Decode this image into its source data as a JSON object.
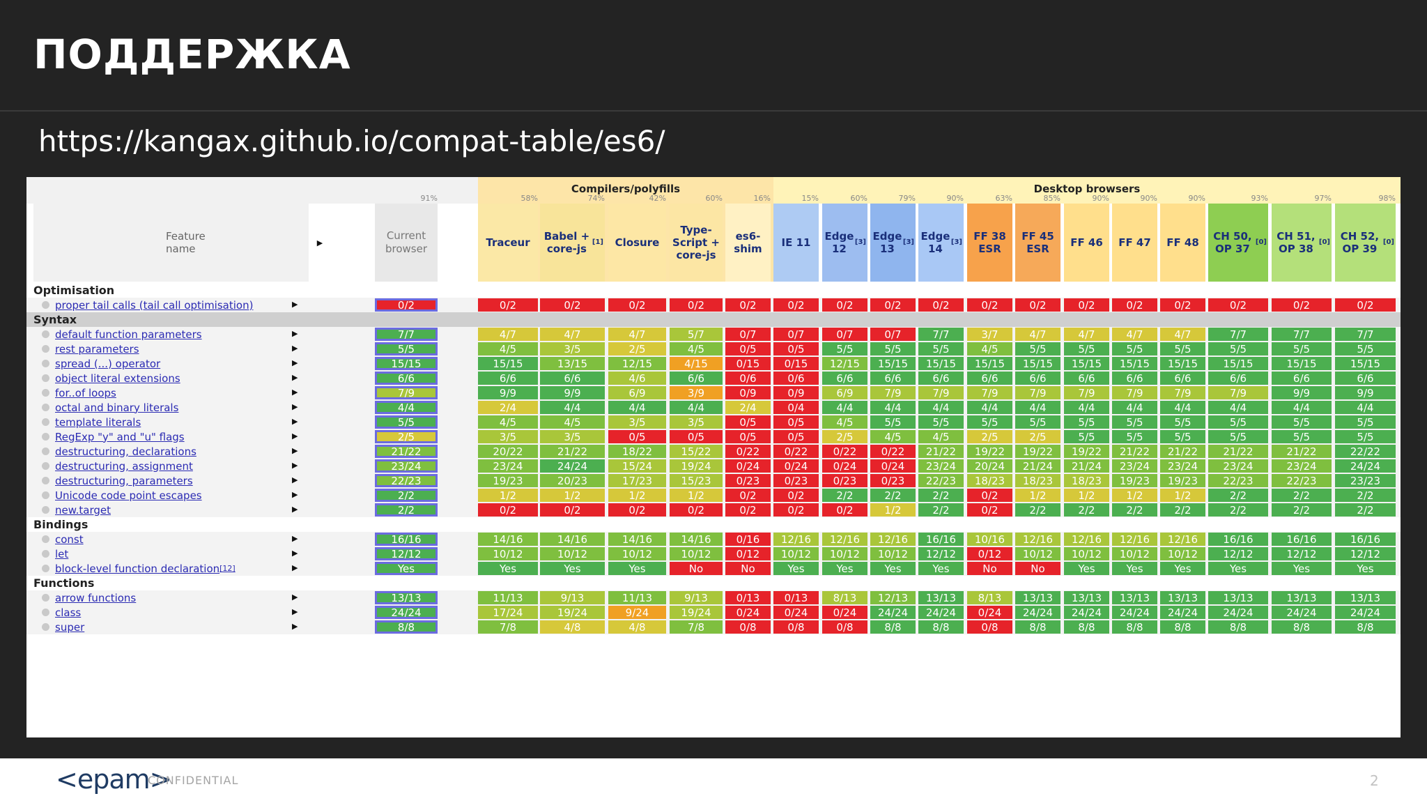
{
  "slide": {
    "title": "ПОДДЕРЖКА",
    "url": "https://kangax.github.io/compat-table/es6/",
    "logo": "<epam>",
    "confidential": "CONFIDENTIAL",
    "page_number": "2"
  },
  "table": {
    "groups": [
      {
        "label": "Compilers/polyfills"
      },
      {
        "label": "Desktop browsers"
      }
    ],
    "feature_name_header": "Feature name",
    "current_browser_header": "Current browser",
    "columns": [
      {
        "label": "Current browser",
        "pct": "91%"
      },
      {
        "label": "Traceur",
        "pct": "58%"
      },
      {
        "label": "Babel + core-js",
        "sup": "[1]",
        "pct": "74%"
      },
      {
        "label": "Closure",
        "pct": "42%"
      },
      {
        "label": "Type-Script + core-js",
        "pct": "60%"
      },
      {
        "label": "es6-shim",
        "pct": "16%"
      },
      {
        "label": "IE 11",
        "pct": "15%"
      },
      {
        "label": "Edge 12",
        "sup": "[3]",
        "pct": "60%"
      },
      {
        "label": "Edge 13",
        "sup": "[3]",
        "pct": "79%"
      },
      {
        "label": "Edge 14",
        "sup": "[3]",
        "pct": "90%"
      },
      {
        "label": "FF 38 ESR",
        "pct": "63%"
      },
      {
        "label": "FF 45 ESR",
        "pct": "85%"
      },
      {
        "label": "FF 46",
        "pct": "90%"
      },
      {
        "label": "FF 47",
        "pct": "90%"
      },
      {
        "label": "FF 48",
        "pct": "90%"
      },
      {
        "label": "CH 50, OP 37",
        "sup": "[0]",
        "pct": "93%"
      },
      {
        "label": "CH 51, OP 38",
        "sup": "[0]",
        "pct": "97%"
      },
      {
        "label": "CH 52, OP 39",
        "sup": "[0]",
        "pct": "98%"
      }
    ],
    "rows": [
      {
        "type": "cat",
        "label": "Optimisation"
      },
      {
        "type": "feat",
        "label": "proper tail calls (tail call optimisation)",
        "cells": [
          "0/2",
          "0/2",
          "0/2",
          "0/2",
          "0/2",
          "0/2",
          "0/2",
          "0/2",
          "0/2",
          "0/2",
          "0/2",
          "0/2",
          "0/2",
          "0/2",
          "0/2",
          "0/2",
          "0/2",
          "0/2"
        ]
      },
      {
        "type": "cat",
        "label": "Syntax"
      },
      {
        "type": "feat",
        "label": "default function parameters",
        "cells": [
          "7/7",
          "4/7",
          "4/7",
          "4/7",
          "5/7",
          "0/7",
          "0/7",
          "0/7",
          "0/7",
          "7/7",
          "3/7",
          "4/7",
          "4/7",
          "4/7",
          "4/7",
          "7/7",
          "7/7",
          "7/7"
        ]
      },
      {
        "type": "feat",
        "label": "rest parameters",
        "cells": [
          "5/5",
          "4/5",
          "3/5",
          "2/5",
          "4/5",
          "0/5",
          "0/5",
          "5/5",
          "5/5",
          "5/5",
          "4/5",
          "5/5",
          "5/5",
          "5/5",
          "5/5",
          "5/5",
          "5/5",
          "5/5"
        ]
      },
      {
        "type": "feat",
        "label": "spread (...) operator",
        "cells": [
          "15/15",
          "15/15",
          "13/15",
          "12/15",
          "4/15",
          "0/15",
          "0/15",
          "12/15",
          "15/15",
          "15/15",
          "15/15",
          "15/15",
          "15/15",
          "15/15",
          "15/15",
          "15/15",
          "15/15",
          "15/15"
        ]
      },
      {
        "type": "feat",
        "label": "object literal extensions",
        "cells": [
          "6/6",
          "6/6",
          "6/6",
          "4/6",
          "6/6",
          "0/6",
          "0/6",
          "6/6",
          "6/6",
          "6/6",
          "6/6",
          "6/6",
          "6/6",
          "6/6",
          "6/6",
          "6/6",
          "6/6",
          "6/6"
        ]
      },
      {
        "type": "feat",
        "label": "for..of loops",
        "cells": [
          "7/9",
          "9/9",
          "9/9",
          "6/9",
          "3/9",
          "0/9",
          "0/9",
          "6/9",
          "7/9",
          "7/9",
          "7/9",
          "7/9",
          "7/9",
          "7/9",
          "7/9",
          "7/9",
          "9/9",
          "9/9"
        ]
      },
      {
        "type": "feat",
        "label": "octal and binary literals",
        "cells": [
          "4/4",
          "2/4",
          "4/4",
          "4/4",
          "4/4",
          "2/4",
          "0/4",
          "4/4",
          "4/4",
          "4/4",
          "4/4",
          "4/4",
          "4/4",
          "4/4",
          "4/4",
          "4/4",
          "4/4",
          "4/4"
        ]
      },
      {
        "type": "feat",
        "label": "template literals",
        "cells": [
          "5/5",
          "4/5",
          "4/5",
          "3/5",
          "3/5",
          "0/5",
          "0/5",
          "4/5",
          "5/5",
          "5/5",
          "5/5",
          "5/5",
          "5/5",
          "5/5",
          "5/5",
          "5/5",
          "5/5",
          "5/5"
        ]
      },
      {
        "type": "feat",
        "label": "RegExp \"y\" and \"u\" flags",
        "cells": [
          "2/5",
          "3/5",
          "3/5",
          "0/5",
          "0/5",
          "0/5",
          "0/5",
          "2/5",
          "4/5",
          "4/5",
          "2/5",
          "2/5",
          "5/5",
          "5/5",
          "5/5",
          "5/5",
          "5/5",
          "5/5"
        ]
      },
      {
        "type": "feat",
        "label": "destructuring, declarations",
        "cells": [
          "21/22",
          "20/22",
          "21/22",
          "18/22",
          "15/22",
          "0/22",
          "0/22",
          "0/22",
          "0/22",
          "21/22",
          "19/22",
          "19/22",
          "19/22",
          "21/22",
          "21/22",
          "21/22",
          "21/22",
          "22/22"
        ]
      },
      {
        "type": "feat",
        "label": "destructuring, assignment",
        "cells": [
          "23/24",
          "23/24",
          "24/24",
          "15/24",
          "19/24",
          "0/24",
          "0/24",
          "0/24",
          "0/24",
          "23/24",
          "20/24",
          "21/24",
          "21/24",
          "23/24",
          "23/24",
          "23/24",
          "23/24",
          "24/24"
        ]
      },
      {
        "type": "feat",
        "label": "destructuring, parameters",
        "cells": [
          "22/23",
          "19/23",
          "20/23",
          "17/23",
          "15/23",
          "0/23",
          "0/23",
          "0/23",
          "0/23",
          "22/23",
          "18/23",
          "18/23",
          "18/23",
          "19/23",
          "19/23",
          "22/23",
          "22/23",
          "23/23"
        ]
      },
      {
        "type": "feat",
        "label": "Unicode code point escapes",
        "cells": [
          "2/2",
          "1/2",
          "1/2",
          "1/2",
          "1/2",
          "0/2",
          "0/2",
          "2/2",
          "2/2",
          "2/2",
          "0/2",
          "1/2",
          "1/2",
          "1/2",
          "1/2",
          "2/2",
          "2/2",
          "2/2"
        ]
      },
      {
        "type": "feat",
        "label": "new.target",
        "cells": [
          "2/2",
          "0/2",
          "0/2",
          "0/2",
          "0/2",
          "0/2",
          "0/2",
          "0/2",
          "1/2",
          "2/2",
          "0/2",
          "2/2",
          "2/2",
          "2/2",
          "2/2",
          "2/2",
          "2/2",
          "2/2"
        ]
      },
      {
        "type": "cat",
        "label": "Bindings"
      },
      {
        "type": "feat",
        "label": "const",
        "cells": [
          "16/16",
          "14/16",
          "14/16",
          "14/16",
          "14/16",
          "0/16",
          "12/16",
          "12/16",
          "12/16",
          "16/16",
          "10/16",
          "12/16",
          "12/16",
          "12/16",
          "12/16",
          "16/16",
          "16/16",
          "16/16"
        ]
      },
      {
        "type": "feat",
        "label": "let",
        "cells": [
          "12/12",
          "10/12",
          "10/12",
          "10/12",
          "10/12",
          "0/12",
          "10/12",
          "10/12",
          "10/12",
          "12/12",
          "0/12",
          "10/12",
          "10/12",
          "10/12",
          "10/12",
          "12/12",
          "12/12",
          "12/12"
        ]
      },
      {
        "type": "feat",
        "label": "block-level function declaration",
        "sup": "[12]",
        "cells": [
          "Yes",
          "Yes",
          "Yes",
          "Yes",
          "No",
          "No",
          "Yes",
          "Yes",
          "Yes",
          "Yes",
          "No",
          "No",
          "Yes",
          "Yes",
          "Yes",
          "Yes",
          "Yes",
          "Yes"
        ]
      },
      {
        "type": "cat",
        "label": "Functions"
      },
      {
        "type": "feat",
        "label": "arrow functions",
        "cells": [
          "13/13",
          "11/13",
          "9/13",
          "11/13",
          "9/13",
          "0/13",
          "0/13",
          "8/13",
          "12/13",
          "13/13",
          "8/13",
          "13/13",
          "13/13",
          "13/13",
          "13/13",
          "13/13",
          "13/13",
          "13/13"
        ]
      },
      {
        "type": "feat",
        "label": "class",
        "cells": [
          "24/24",
          "17/24",
          "19/24",
          "9/24",
          "19/24",
          "0/24",
          "0/24",
          "0/24",
          "24/24",
          "24/24",
          "0/24",
          "24/24",
          "24/24",
          "24/24",
          "24/24",
          "24/24",
          "24/24",
          "24/24"
        ]
      },
      {
        "type": "feat",
        "label": "super",
        "cells": [
          "8/8",
          "7/8",
          "4/8",
          "4/8",
          "7/8",
          "0/8",
          "0/8",
          "0/8",
          "8/8",
          "8/8",
          "0/8",
          "8/8",
          "8/8",
          "8/8",
          "8/8",
          "8/8",
          "8/8",
          "8/8"
        ]
      }
    ]
  }
}
